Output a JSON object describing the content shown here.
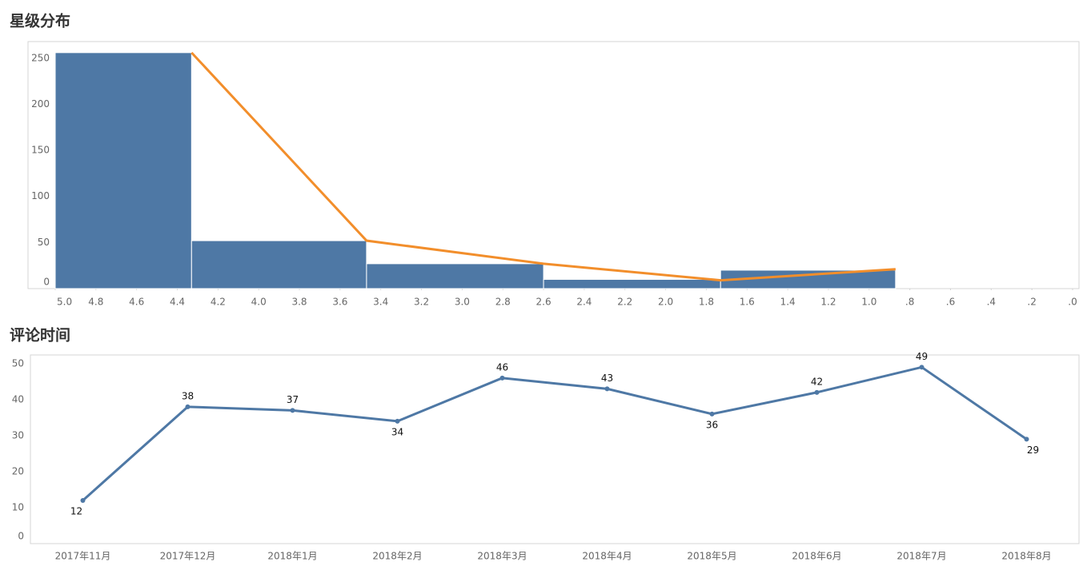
{
  "chart_data": [
    {
      "type": "histogram",
      "title": "星级分布",
      "bins": [
        5,
        4.33,
        3.47,
        2.6,
        1.73,
        0.87
      ],
      "values": [
        256,
        52,
        27,
        10,
        20
      ],
      "color": "#4e78a5",
      "line": {
        "color": "#f28e2b",
        "x": [
          4.33,
          3.47,
          2.6,
          1.73,
          0.87
        ],
        "values": [
          256,
          52,
          27,
          9,
          21
        ]
      },
      "xlim": [
        5,
        0
      ],
      "xticks": [
        {
          "value": 5,
          "label": "5.0"
        },
        4.8,
        4.6,
        4.4,
        4.2,
        {
          "value": 4,
          "label": "4.0"
        },
        3.8,
        3.6,
        3.4,
        3.2,
        {
          "value": 3,
          "label": "3.0"
        },
        2.8,
        2.6,
        2.4,
        2.2,
        {
          "value": 2,
          "label": "2.0"
        },
        1.8,
        1.6,
        1.4,
        1.2,
        {
          "value": 1,
          "label": "1.0"
        },
        {
          "value": 0.8,
          "label": ".8"
        },
        {
          "value": 0.6,
          "label": ".6"
        },
        {
          "value": 0.4,
          "label": ".4"
        },
        {
          "value": 0.2,
          "label": ".2"
        },
        {
          "value": 0,
          "label": ".0"
        }
      ],
      "ylim": [
        0,
        268
      ],
      "yticks": [
        0,
        50,
        100,
        150,
        200,
        250
      ]
    },
    {
      "type": "line",
      "title": "评论时间",
      "categories": [
        "2017年11月",
        "2017年12月",
        "2018年1月",
        "2018年2月",
        "2018年3月",
        "2018年4月",
        "2018年5月",
        "2018年6月",
        "2018年7月",
        "2018年8月"
      ],
      "values": [
        12,
        38,
        37,
        34,
        46,
        43,
        36,
        42,
        49,
        29
      ],
      "color": "#4e78a5",
      "ylim": [
        0,
        52.4
      ],
      "yticks": [
        0,
        10,
        20,
        30,
        40,
        50
      ]
    }
  ]
}
